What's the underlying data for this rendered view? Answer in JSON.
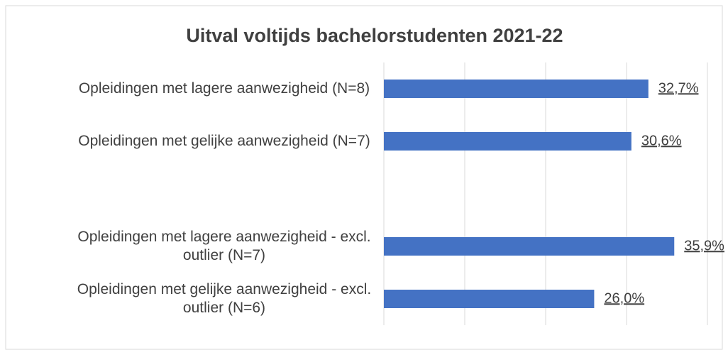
{
  "chart_data": {
    "type": "hbar",
    "title": "Uitval voltijds bachelorstudenten 2021-22",
    "categories": [
      "Opleidingen met lagere aanwezigheid (N=8)",
      "Opleidingen met gelijke aanwezigheid (N=7)",
      null,
      "Opleidingen met lagere aanwezigheid - excl. outlier (N=7)",
      "Opleidingen met gelijke aanwezigheid - excl. outlier (N=6)"
    ],
    "values": [
      32.7,
      30.6,
      null,
      35.9,
      26.0
    ],
    "value_labels": [
      "32,7%",
      "30,6%",
      null,
      "35,9%",
      "26,0%"
    ],
    "color": "#4472c4",
    "xlim": [
      0,
      40
    ],
    "xticks": [
      0,
      10,
      20,
      30,
      40
    ],
    "grid": true
  }
}
